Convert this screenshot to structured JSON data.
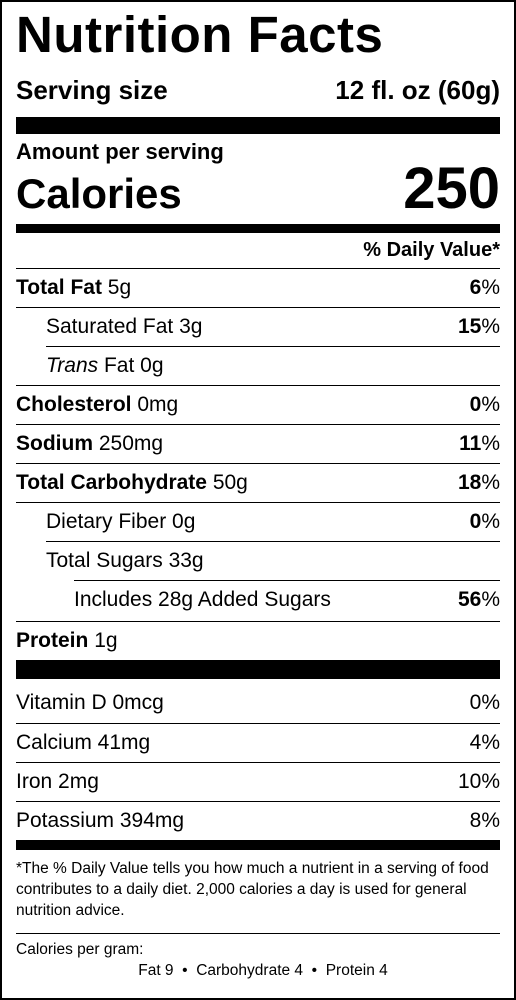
{
  "title": "Nutrition Facts",
  "serving": {
    "label": "Serving size",
    "value": "12 fl. oz (60g)"
  },
  "amount_per_serving": "Amount per serving",
  "calories": {
    "label": "Calories",
    "value": "250"
  },
  "daily_value_header": "% Daily Value*",
  "nutrients": [
    {
      "name": "Total Fat",
      "amount": "5g",
      "dv": "6",
      "bold": true
    },
    {
      "name": "Saturated Fat",
      "amount": "3g",
      "dv": "15",
      "bold": false
    },
    {
      "name_italic": "Trans",
      "name": "Fat",
      "amount": "0g",
      "dv": "",
      "bold": false
    },
    {
      "name": "Cholesterol",
      "amount": "0mg",
      "dv": "0",
      "bold": true
    },
    {
      "name": "Sodium",
      "amount": "250mg",
      "dv": "11",
      "bold": true
    },
    {
      "name": "Total Carbohydrate",
      "amount": "50g",
      "dv": "18",
      "bold": true
    },
    {
      "name": "Dietary Fiber",
      "amount": "0g",
      "dv": "0",
      "bold": false
    },
    {
      "name": "Total Sugars",
      "amount": "33g",
      "dv": "",
      "bold": false
    },
    {
      "name": "Includes 28g Added Sugars",
      "amount": "",
      "dv": "56",
      "bold": false
    },
    {
      "name": "Protein",
      "amount": "1g",
      "dv": "",
      "bold": true
    }
  ],
  "percent_sign": "%",
  "vitamins": [
    {
      "name": "Vitamin D 0mcg",
      "dv": "0%"
    },
    {
      "name": "Calcium 41mg",
      "dv": "4%"
    },
    {
      "name": "Iron 2mg",
      "dv": "10%"
    },
    {
      "name": "Potassium 394mg",
      "dv": "8%"
    }
  ],
  "footnote": "*The % Daily Value tells you how much a nutrient in a serving of food contributes to a daily diet. 2,000 calories a day is used for general nutrition advice.",
  "calories_per_gram": {
    "label": "Calories per gram:",
    "values": "Fat 9  •  Carbohydrate 4  •  Protein 4"
  }
}
